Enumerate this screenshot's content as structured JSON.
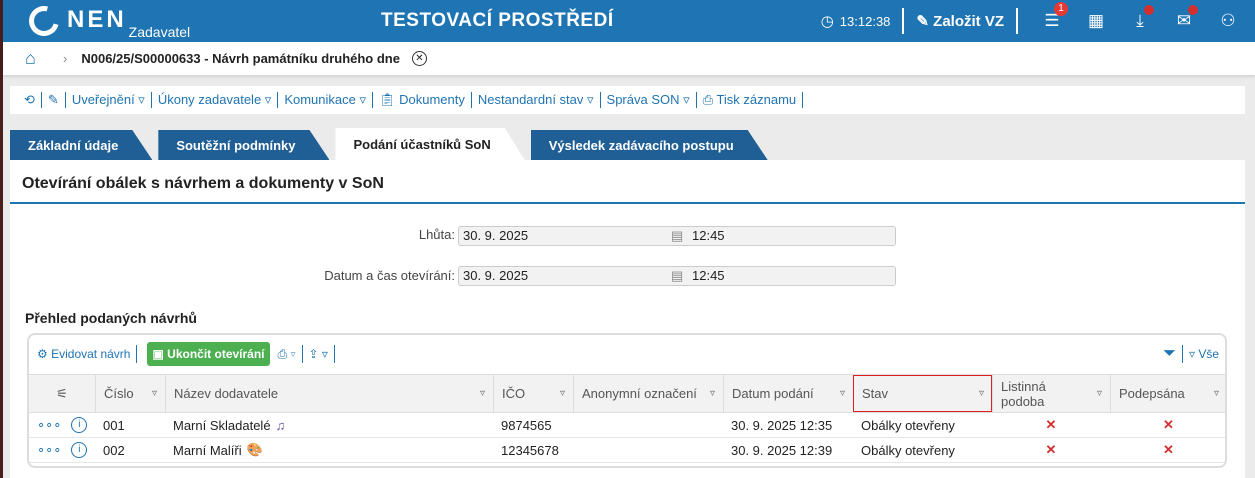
{
  "header": {
    "logo": "NEN",
    "logo_sub": "Zadavatel",
    "env_title": "TESTOVACÍ PROSTŘEDÍ",
    "time": "13:12:38",
    "create_label": "Založit VZ",
    "menu_badge": "1",
    "brand_color": "#1f74b3"
  },
  "breadcrumb": {
    "item": "N006/25/S00000633 - Návrh památníku druhého dne"
  },
  "toolbar": {
    "items": [
      "Uveřejnění ▿",
      "Úkony zadavatele ▿",
      "Komunikace ▿",
      "Dokumenty",
      "Nestandardní stav ▿",
      "Správa SON ▿",
      "Tisk záznamu"
    ]
  },
  "tabs": [
    {
      "label": "Základní údaje"
    },
    {
      "label": "Soutěžní podmínky"
    },
    {
      "label": "Podání účastníků SoN",
      "active": true
    },
    {
      "label": "Výsledek zadávacího postupu"
    }
  ],
  "section": {
    "title": "Otevírání obálek s návrhem a dokumenty v SoN"
  },
  "form": {
    "deadline_label": "Lhůta:",
    "deadline_date": "30. 9. 2025",
    "deadline_time": "12:45",
    "open_label": "Datum a čas otevírání:",
    "open_date": "30. 9. 2025",
    "open_time": "12:45"
  },
  "table": {
    "title": "Přehled podaných návrhů",
    "register_label": "Evidovat návrh",
    "end_label": "Ukončit otevírání",
    "all_label": "Vše",
    "columns": [
      "Číslo",
      "Název dodavatele",
      "IČO",
      "Anonymní označení",
      "Datum podání",
      "Stav",
      "Listinná podoba",
      "Podepsána"
    ],
    "rows": [
      {
        "cislo": "001",
        "nazev": "Marní Skladatelé",
        "icon": "♫",
        "ico": "9874565",
        "anon": "",
        "datum": "30. 9. 2025 12:35",
        "stav": "Obálky otevřeny",
        "listinna": "✕",
        "podepsana": "✕"
      },
      {
        "cislo": "002",
        "nazev": "Marní Malíři",
        "icon": "🎨",
        "ico": "12345678",
        "anon": "",
        "datum": "30. 9. 2025 12:39",
        "stav": "Obálky otevřeny",
        "listinna": "✕",
        "podepsana": "✕"
      }
    ]
  }
}
